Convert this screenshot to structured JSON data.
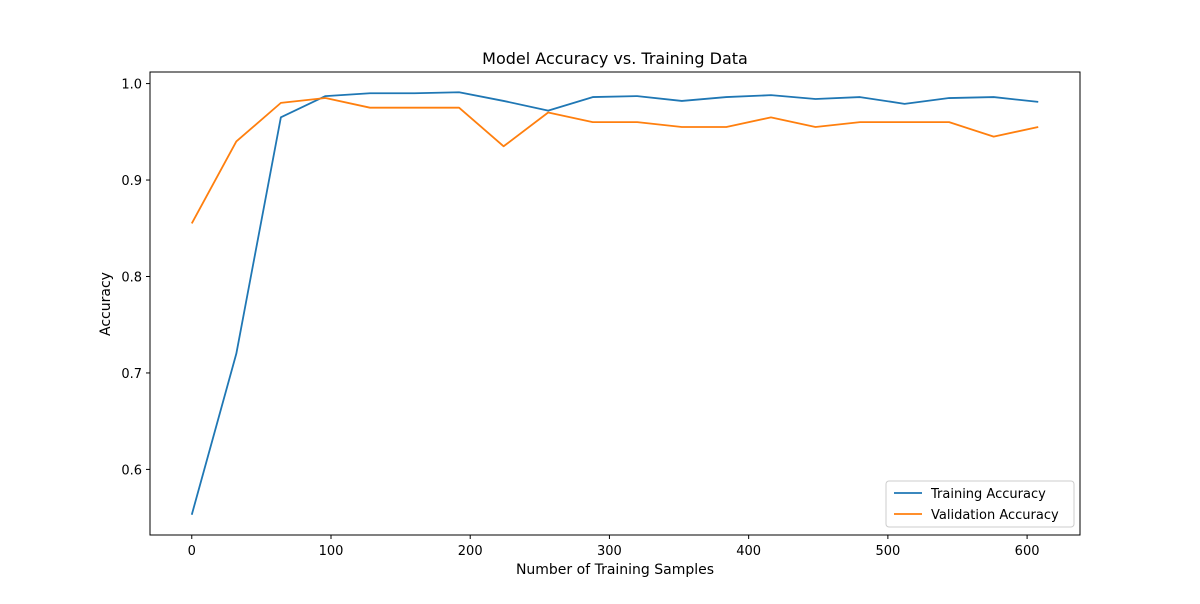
{
  "chart_data": {
    "type": "line",
    "title": "Model Accuracy vs. Training Data",
    "xlabel": "Number of Training Samples",
    "ylabel": "Accuracy",
    "xlim": [
      -30,
      638
    ],
    "ylim": [
      0.532,
      1.012
    ],
    "xticks": [
      0,
      100,
      200,
      300,
      400,
      500,
      600
    ],
    "yticks": [
      0.6,
      0.7,
      0.8,
      0.9,
      1.0
    ],
    "ytick_labels": [
      "0.6",
      "0.7",
      "0.8",
      "0.9",
      "1.0"
    ],
    "grid": false,
    "legend_position": "lower-right",
    "x": [
      0,
      32,
      64,
      96,
      128,
      160,
      192,
      224,
      256,
      288,
      320,
      352,
      384,
      416,
      448,
      480,
      512,
      544,
      576,
      608
    ],
    "series": [
      {
        "name": "Training Accuracy",
        "color": "#1f77b4",
        "values": [
          0.553,
          0.72,
          0.965,
          0.987,
          0.99,
          0.99,
          0.991,
          0.982,
          0.972,
          0.986,
          0.987,
          0.982,
          0.986,
          0.988,
          0.984,
          0.986,
          0.979,
          0.985,
          0.986,
          0.981
        ]
      },
      {
        "name": "Validation Accuracy",
        "color": "#ff7f0e",
        "values": [
          0.855,
          0.94,
          0.98,
          0.985,
          0.975,
          0.975,
          0.975,
          0.935,
          0.97,
          0.96,
          0.96,
          0.955,
          0.955,
          0.965,
          0.955,
          0.96,
          0.96,
          0.96,
          0.945,
          0.955
        ]
      }
    ]
  }
}
